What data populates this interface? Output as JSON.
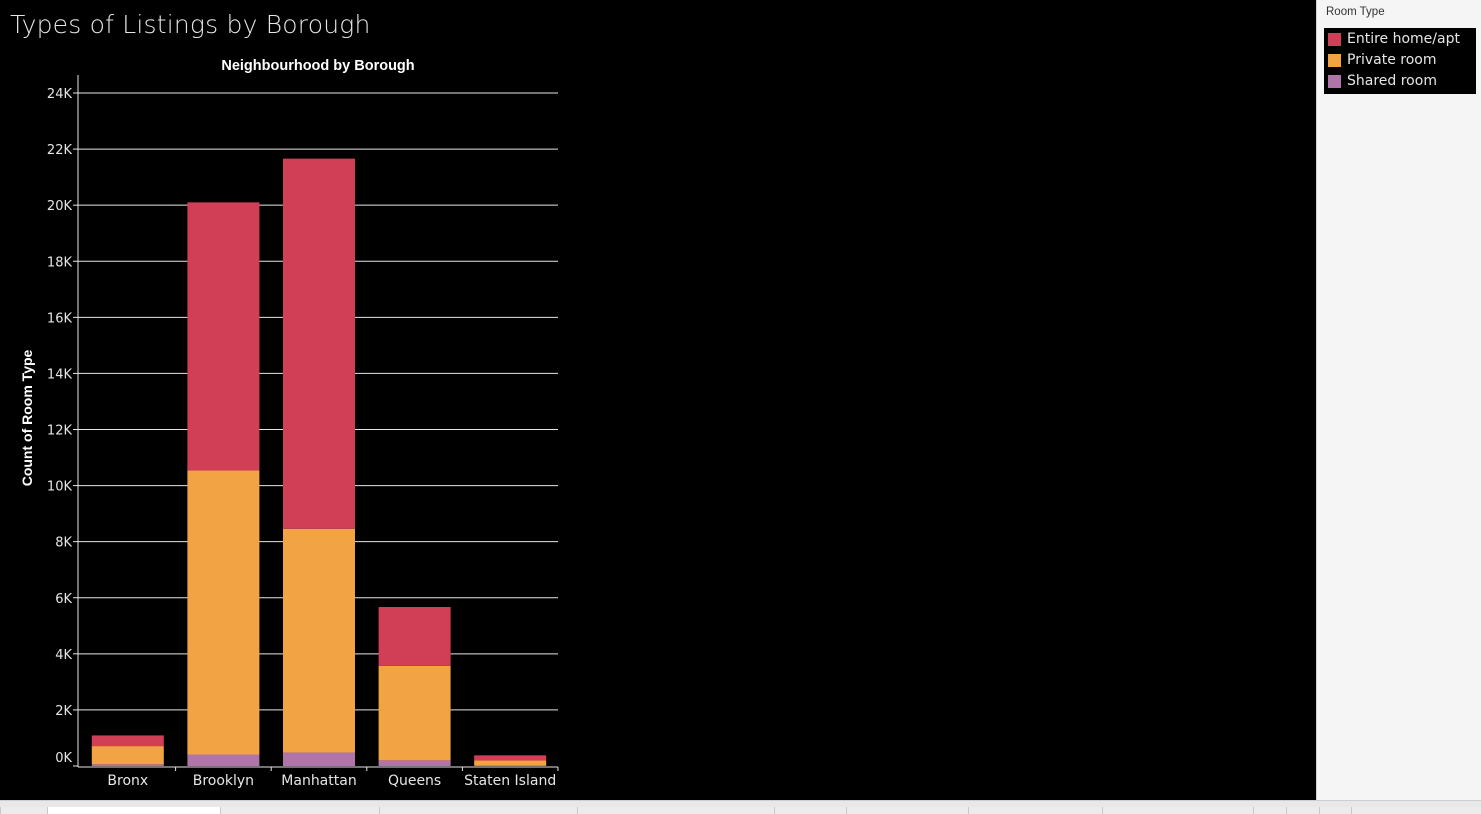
{
  "dashboard": {
    "title": "Types of Listings by Borough"
  },
  "legend": {
    "title": "Room Type",
    "items": [
      {
        "label": "Entire home/apt",
        "color": "#d13f57"
      },
      {
        "label": "Private room",
        "color": "#f2a444"
      },
      {
        "label": "Shared room",
        "color": "#b174a8"
      }
    ]
  },
  "chart_data": {
    "type": "bar",
    "stacked": true,
    "title": "Neighbourhood by Borough",
    "xlabel": "",
    "ylabel": "Count of Room Type",
    "ylim": [
      0,
      24500
    ],
    "yticks": [
      {
        "value": 0,
        "label": "0K"
      },
      {
        "value": 2000,
        "label": "2K"
      },
      {
        "value": 4000,
        "label": "4K"
      },
      {
        "value": 6000,
        "label": "6K"
      },
      {
        "value": 8000,
        "label": "8K"
      },
      {
        "value": 10000,
        "label": "10K"
      },
      {
        "value": 12000,
        "label": "12K"
      },
      {
        "value": 14000,
        "label": "14K"
      },
      {
        "value": 16000,
        "label": "16K"
      },
      {
        "value": 18000,
        "label": "18K"
      },
      {
        "value": 20000,
        "label": "20K"
      },
      {
        "value": 22000,
        "label": "22K"
      },
      {
        "value": 24000,
        "label": "24K"
      }
    ],
    "grid": true,
    "legend_position": "top-right",
    "categories": [
      "Bronx",
      "Brooklyn",
      "Manhattan",
      "Queens",
      "Staten Island"
    ],
    "series": [
      {
        "name": "Shared room",
        "color": "#b174a8",
        "values": [
          60,
          410,
          480,
          200,
          10
        ]
      },
      {
        "name": "Private room",
        "color": "#f2a444",
        "values": [
          650,
          10130,
          7980,
          3370,
          190
        ]
      },
      {
        "name": "Entire home/apt",
        "color": "#d13f57",
        "values": [
          380,
          9560,
          13200,
          2100,
          180
        ]
      }
    ]
  }
}
